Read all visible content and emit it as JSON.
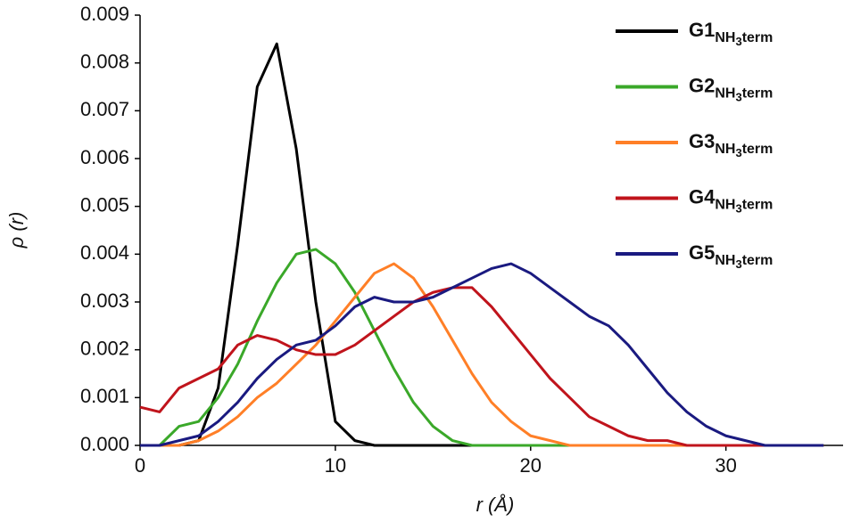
{
  "chart_data": {
    "type": "line",
    "x_label": "r (Å)",
    "y_label": "ρ (r)",
    "x": [
      0,
      1,
      2,
      3,
      4,
      5,
      6,
      7,
      8,
      9,
      10,
      11,
      12,
      13,
      14,
      15,
      16,
      17,
      18,
      19,
      20,
      21,
      22,
      23,
      24,
      25,
      26,
      27,
      28,
      29,
      30,
      31,
      32,
      33,
      34,
      35
    ],
    "series": [
      {
        "name": "G1",
        "subscript": [
          "NH",
          "3",
          "term"
        ],
        "color": "#000000",
        "values": [
          0,
          0,
          0,
          0.0001,
          0.0012,
          0.0042,
          0.0075,
          0.0084,
          0.0062,
          0.003,
          0.0005,
          0.0001,
          0,
          0,
          0,
          0,
          0,
          0,
          0,
          0,
          0,
          0,
          0,
          0,
          0,
          0,
          0,
          0,
          0,
          0,
          0,
          0,
          0,
          0,
          0,
          0
        ]
      },
      {
        "name": "G2",
        "subscript": [
          "NH",
          "3",
          "term"
        ],
        "color": "#3aa829",
        "values": [
          0,
          0,
          0.0004,
          0.0005,
          0.001,
          0.0017,
          0.0026,
          0.0034,
          0.004,
          0.0041,
          0.0038,
          0.0032,
          0.0024,
          0.0016,
          0.0009,
          0.0004,
          0.0001,
          0,
          0,
          0,
          0,
          0,
          0,
          0,
          0,
          0,
          0,
          0,
          0,
          0,
          0,
          0,
          0,
          0,
          0,
          0
        ]
      },
      {
        "name": "G3",
        "subscript": [
          "NH",
          "3",
          "term"
        ],
        "color": "#ff7f27",
        "values": [
          0,
          0,
          0,
          0.0001,
          0.0003,
          0.0006,
          0.001,
          0.0013,
          0.0017,
          0.0021,
          0.0026,
          0.0031,
          0.0036,
          0.0038,
          0.0035,
          0.0029,
          0.0022,
          0.0015,
          0.0009,
          0.0005,
          0.0002,
          0.0001,
          0,
          0,
          0,
          0,
          0,
          0,
          0,
          0,
          0,
          0,
          0,
          0,
          0,
          0
        ]
      },
      {
        "name": "G4",
        "subscript": [
          "NH",
          "3",
          "term"
        ],
        "color": "#c0141c",
        "values": [
          0.0008,
          0.0007,
          0.0012,
          0.0014,
          0.0016,
          0.0021,
          0.0023,
          0.0022,
          0.002,
          0.0019,
          0.0019,
          0.0021,
          0.0024,
          0.0027,
          0.003,
          0.0032,
          0.0033,
          0.0033,
          0.0029,
          0.0024,
          0.0019,
          0.0014,
          0.001,
          0.0006,
          0.0004,
          0.0002,
          0.0001,
          0.0001,
          0,
          0,
          0,
          0,
          0,
          0,
          0,
          0
        ]
      },
      {
        "name": "G5",
        "subscript": [
          "NH",
          "3",
          "term"
        ],
        "color": "#1a1a80",
        "values": [
          0,
          0,
          0.0001,
          0.0002,
          0.0005,
          0.0009,
          0.0014,
          0.0018,
          0.0021,
          0.0022,
          0.0025,
          0.0029,
          0.0031,
          0.003,
          0.003,
          0.0031,
          0.0033,
          0.0035,
          0.0037,
          0.0038,
          0.0036,
          0.0033,
          0.003,
          0.0027,
          0.0025,
          0.0021,
          0.0016,
          0.0011,
          0.0007,
          0.0004,
          0.0002,
          0.0001,
          0,
          0,
          0,
          0
        ]
      }
    ],
    "xlim": [
      0,
      36
    ],
    "ylim": [
      0,
      0.009
    ],
    "xticks": [
      0,
      10,
      20,
      30
    ],
    "yticks": [
      {
        "value": 0,
        "label": "0.000"
      },
      {
        "value": 0.001,
        "label": "0.001"
      },
      {
        "value": 0.002,
        "label": "0.002"
      },
      {
        "value": 0.003,
        "label": "0.003"
      },
      {
        "value": 0.004,
        "label": "0.004"
      },
      {
        "value": 0.005,
        "label": "0.005"
      },
      {
        "value": 0.006,
        "label": "0.006"
      },
      {
        "value": 0.007,
        "label": "0.007"
      },
      {
        "value": 0.008,
        "label": "0.008"
      },
      {
        "value": 0.009,
        "label": "0.009"
      }
    ],
    "legend": "upper right",
    "grid": false
  }
}
